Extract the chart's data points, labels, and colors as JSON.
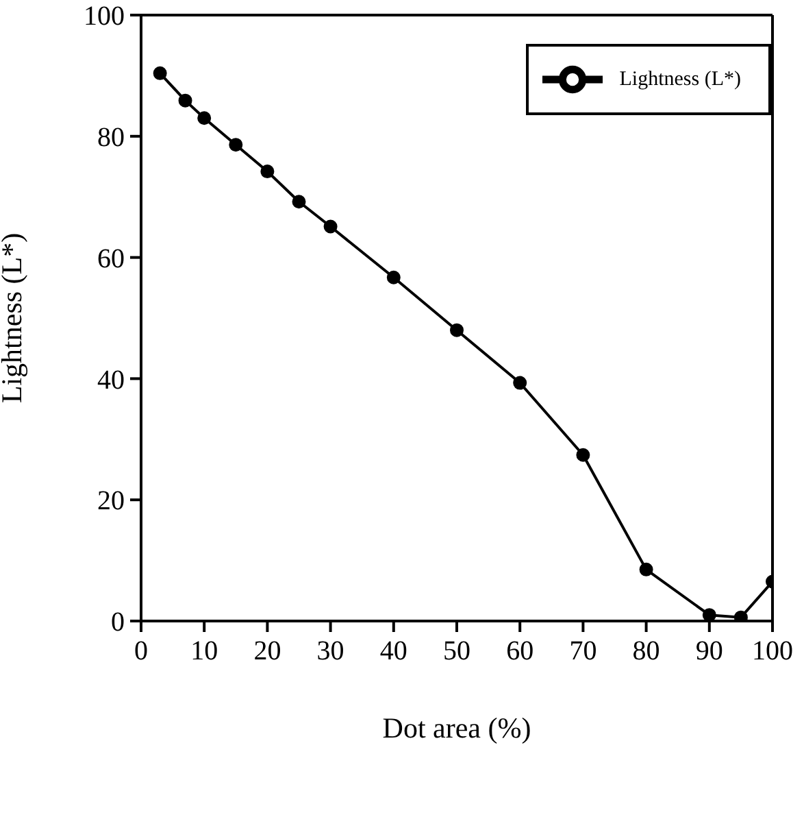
{
  "chart_data": {
    "type": "line",
    "xlabel": "Dot area (%)",
    "ylabel": "Lightness (L*)",
    "x": [
      3,
      7,
      10,
      15,
      20,
      25,
      30,
      40,
      50,
      60,
      70,
      80,
      90,
      95,
      100
    ],
    "series": [
      {
        "name": "Lightness (L*)",
        "color": "#000000",
        "values": [
          90.4,
          85.9,
          83.0,
          78.6,
          74.2,
          69.2,
          65.1,
          56.7,
          48.0,
          39.3,
          27.4,
          8.5,
          1.0,
          0.6,
          6.5
        ]
      }
    ],
    "xlim": [
      0,
      100
    ],
    "xticks": [
      0,
      10,
      20,
      30,
      40,
      50,
      60,
      70,
      80,
      90,
      100
    ],
    "ylim": [
      0,
      100
    ],
    "yticks": [
      0,
      20,
      40,
      60,
      80,
      100
    ],
    "grid": false,
    "legend": "top right",
    "marker": "circle",
    "line_style": "solid"
  }
}
